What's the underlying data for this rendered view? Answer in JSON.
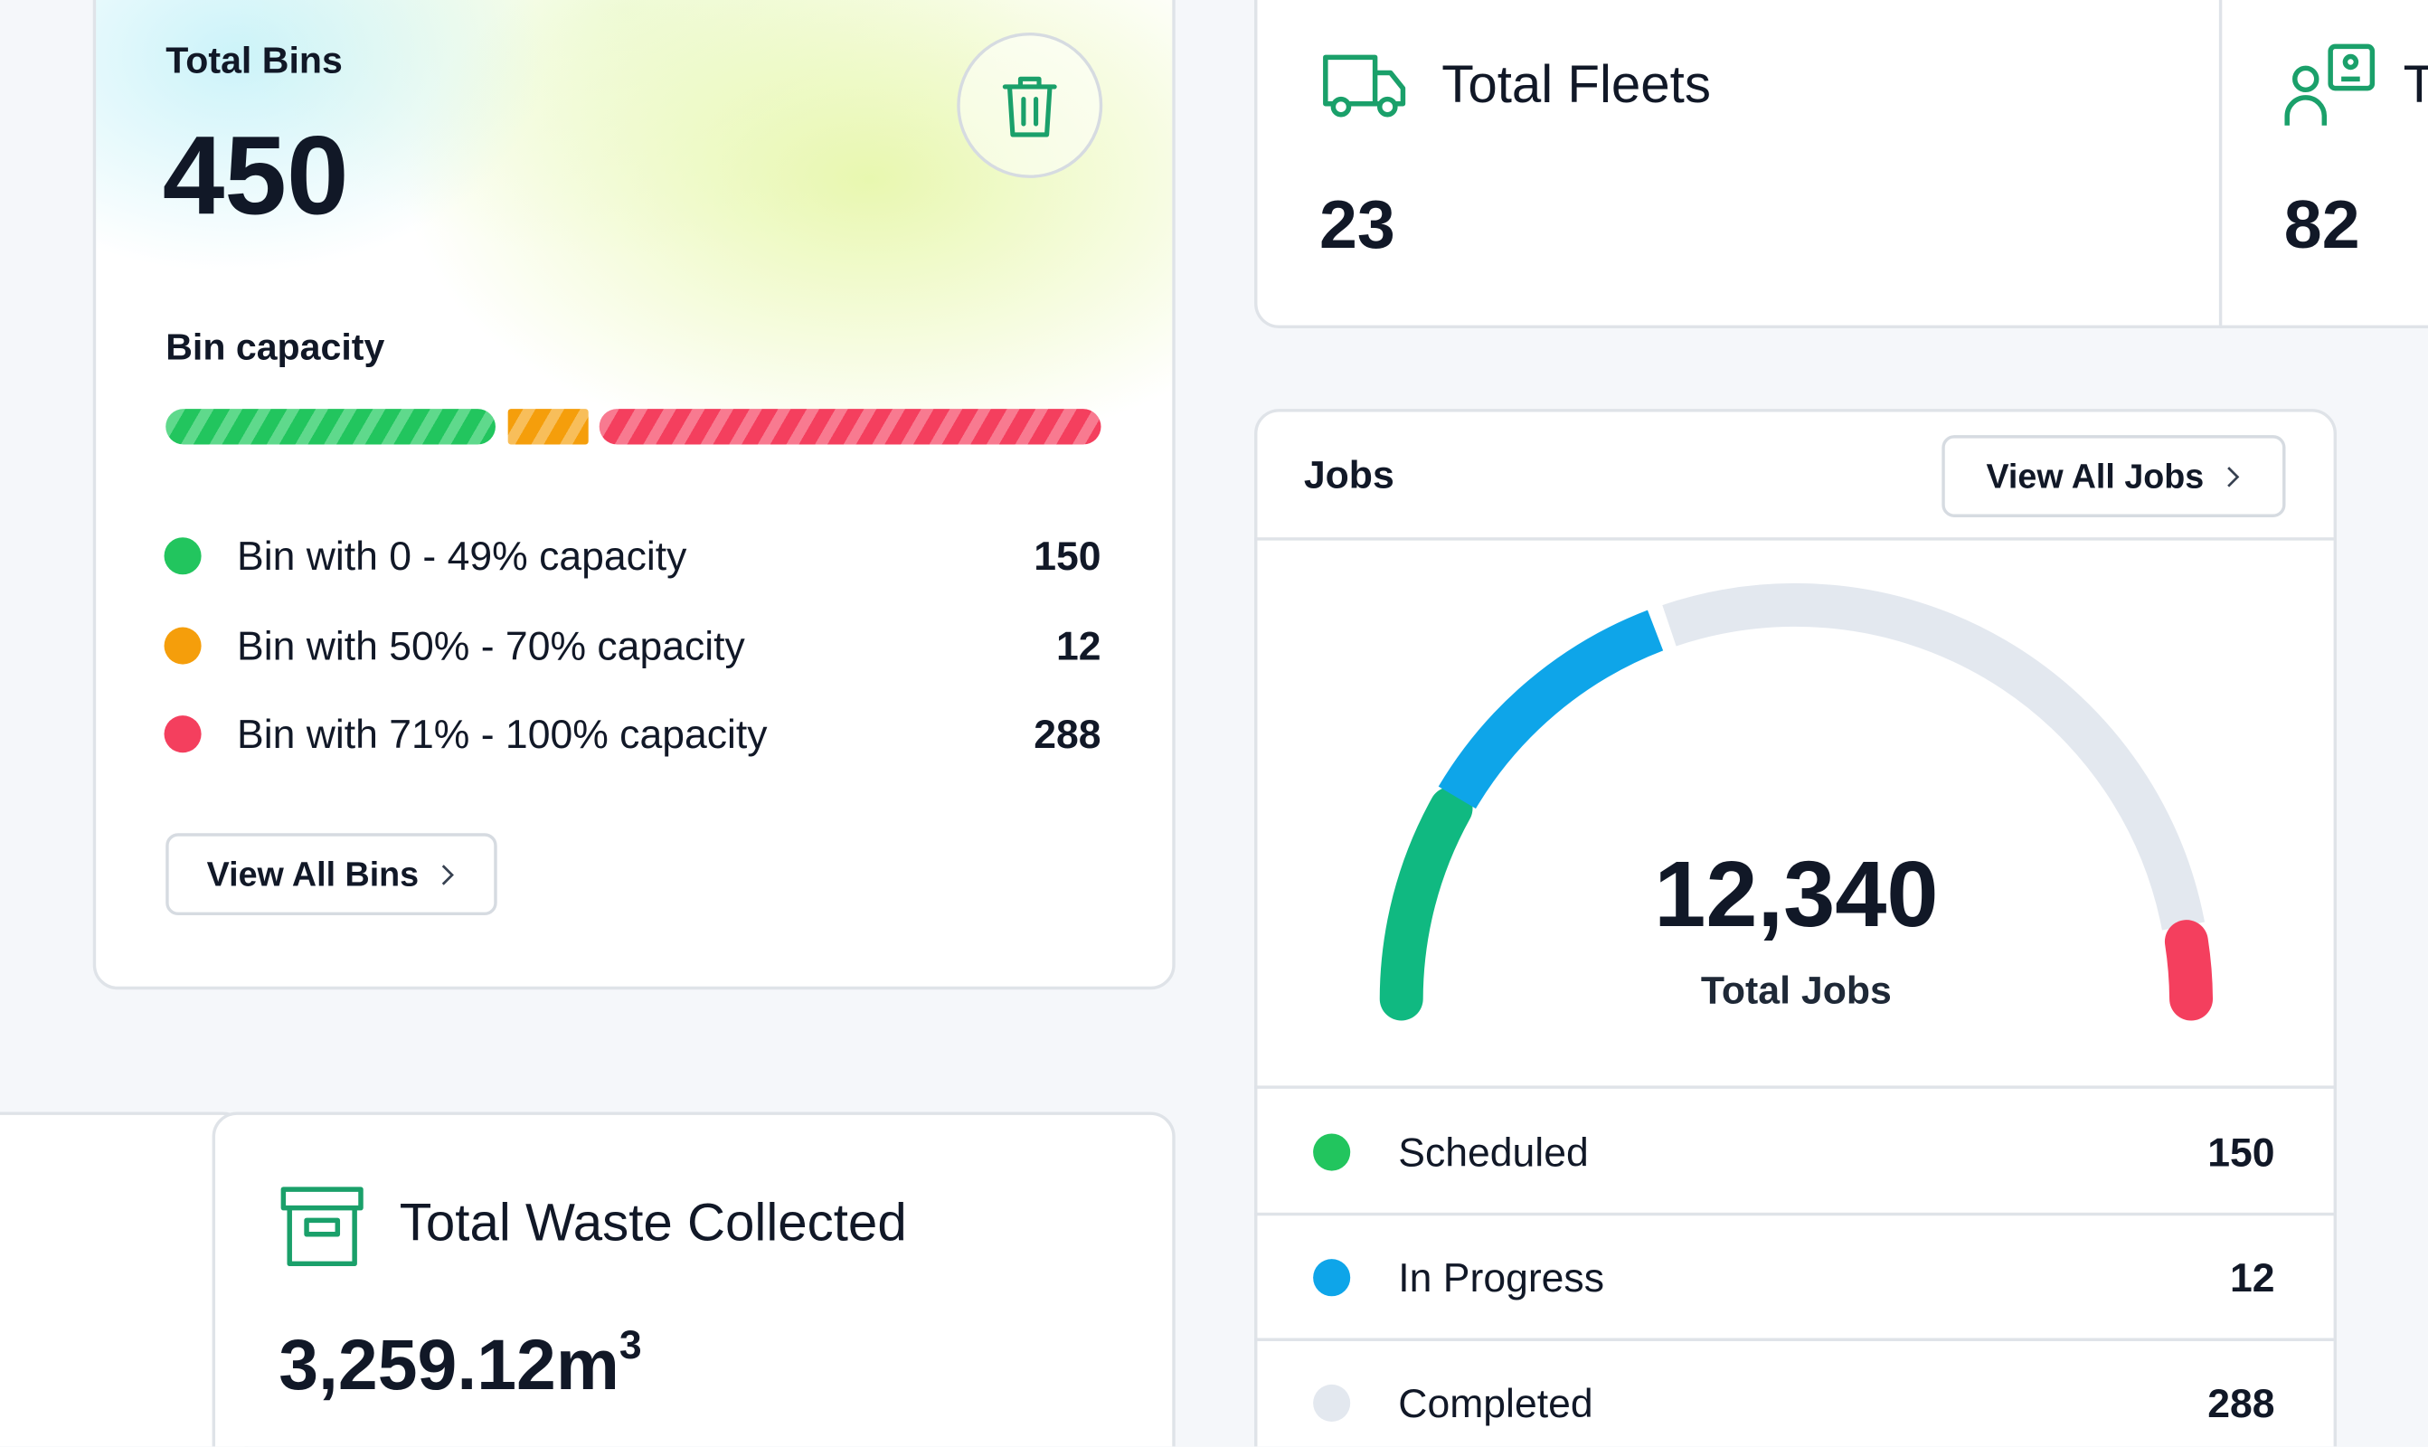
{
  "bins_card": {
    "title": "Total Bins",
    "value": 450,
    "section_title": "Bin capacity",
    "items": [
      {
        "label": "Bin with 0 - 49% capacity",
        "value": 150
      },
      {
        "label": "Bin with 50% - 70% capacity",
        "value": 12
      },
      {
        "label": "Bin with 71% - 100% capacity",
        "value": 288
      }
    ],
    "button": "View All Bins"
  },
  "fleets_card": {
    "title": "Total Fleets",
    "value": 23
  },
  "third_card": {
    "title": "T",
    "value": 82
  },
  "jobs_card": {
    "title": "Jobs",
    "button": "View All Jobs",
    "total": "12,340",
    "total_label": "Total Jobs",
    "items": [
      {
        "label": "Scheduled",
        "value": 150
      },
      {
        "label": "In Progress",
        "value": 12
      },
      {
        "label": "Completed",
        "value": 288
      }
    ]
  },
  "waste_card": {
    "title": "Total Waste Collected",
    "value": "3,259.12m",
    "exponent": 3
  }
}
